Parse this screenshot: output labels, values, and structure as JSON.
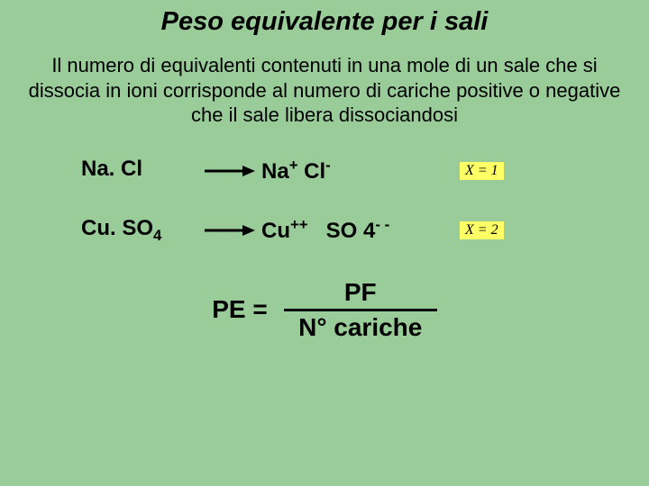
{
  "title": "Peso equivalente per i sali",
  "description": "Il numero di equivalenti contenuti in una mole di un sale che si dissocia in ioni corrisponde al numero di cariche positive o negative che il sale libera dissociandosi",
  "reactions": [
    {
      "reactant_base": "Na. Cl",
      "reactant_sub": "",
      "product_html": "Na<sup>+</sup> Cl<sup>-</sup>",
      "x_label": "X = 1"
    },
    {
      "reactant_base": "Cu. SO",
      "reactant_sub": "4",
      "product_html": "Cu<sup>++</sup>&nbsp;&nbsp;&nbsp;SO 4<sup>- -</sup>",
      "x_label": "X = 2"
    }
  ],
  "formula": {
    "left": "PE  =",
    "numerator": "PF",
    "denominator": "N° cariche"
  },
  "colors": {
    "background": "#99cc99",
    "highlight": "#ffff66",
    "text": "#000000"
  },
  "arrow": {
    "stroke": "#000000",
    "stroke_width": 3,
    "length": 55
  }
}
